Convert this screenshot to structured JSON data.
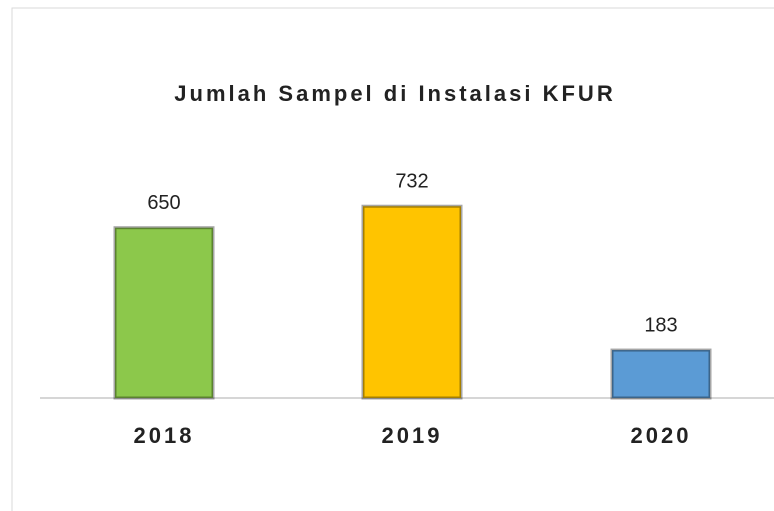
{
  "chart_data": {
    "type": "bar",
    "title": "Jumlah Sampel di Instalasi KFUR",
    "categories": [
      "2018",
      "2019",
      "2020"
    ],
    "values": [
      650,
      732,
      183
    ],
    "colors": [
      "#8cc84b",
      "#ffc400",
      "#5b9bd5"
    ]
  }
}
